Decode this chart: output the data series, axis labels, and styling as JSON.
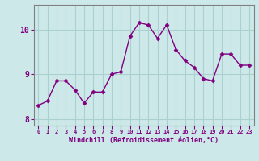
{
  "x": [
    0,
    1,
    2,
    3,
    4,
    5,
    6,
    7,
    8,
    9,
    10,
    11,
    12,
    13,
    14,
    15,
    16,
    17,
    18,
    19,
    20,
    21,
    22,
    23
  ],
  "y": [
    8.3,
    8.4,
    8.85,
    8.85,
    8.65,
    8.35,
    8.6,
    8.6,
    9.0,
    9.05,
    9.85,
    10.15,
    10.1,
    9.8,
    10.1,
    9.55,
    9.3,
    9.15,
    8.9,
    8.85,
    9.45,
    9.45,
    9.2,
    9.2
  ],
  "line_color": "#800080",
  "marker": "D",
  "markersize": 2.5,
  "linewidth": 1.0,
  "bg_color": "#cce8e8",
  "grid_color": "#aad0d0",
  "xlabel": "Windchill (Refroidissement éolien,°C)",
  "xlabel_color": "#800080",
  "tick_color": "#800080",
  "label_color": "#800080",
  "ylim": [
    7.85,
    10.55
  ],
  "xlim": [
    -0.5,
    23.5
  ],
  "yticks": [
    8,
    9,
    10
  ],
  "xticks": [
    0,
    1,
    2,
    3,
    4,
    5,
    6,
    7,
    8,
    9,
    10,
    11,
    12,
    13,
    14,
    15,
    16,
    17,
    18,
    19,
    20,
    21,
    22,
    23
  ]
}
